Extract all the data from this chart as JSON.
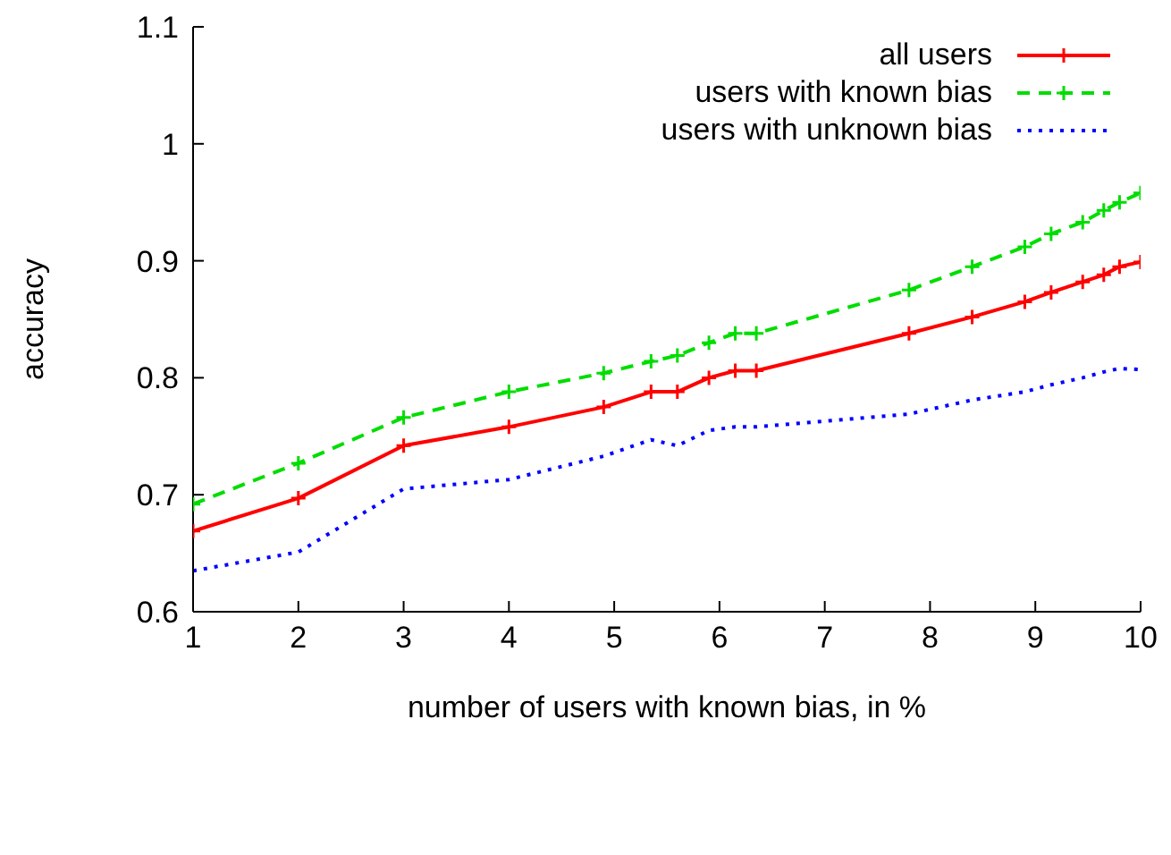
{
  "chart_data": {
    "type": "line",
    "xlabel": "number of users with known bias, in %",
    "ylabel": "accuracy",
    "x": [
      1,
      2,
      3,
      4,
      4.9,
      5.35,
      5.6,
      5.9,
      6.15,
      6.35,
      7.8,
      8.4,
      8.9,
      9.15,
      9.45,
      9.65,
      9.8,
      10
    ],
    "series": [
      {
        "name": "all users",
        "color": "#ff0000",
        "line_style": "solid",
        "marker": "cross",
        "values": [
          0.669,
          0.697,
          0.742,
          0.758,
          0.775,
          0.788,
          0.788,
          0.8,
          0.806,
          0.806,
          0.838,
          0.852,
          0.865,
          0.873,
          0.882,
          0.888,
          0.895,
          0.899
        ]
      },
      {
        "name": "users with known bias",
        "color": "#00dd00",
        "line_style": "dashed",
        "marker": "cross",
        "values": [
          0.692,
          0.727,
          0.766,
          0.788,
          0.804,
          0.814,
          0.819,
          0.83,
          0.838,
          0.838,
          0.875,
          0.895,
          0.912,
          0.923,
          0.933,
          0.943,
          0.95,
          0.958
        ]
      },
      {
        "name": "users with unknown bias",
        "color": "#0000ff",
        "line_style": "dotted",
        "marker": "none",
        "values": [
          0.635,
          0.651,
          0.705,
          0.713,
          0.733,
          0.747,
          0.742,
          0.755,
          0.758,
          0.758,
          0.769,
          0.781,
          0.788,
          0.794,
          0.8,
          0.805,
          0.808,
          0.807
        ]
      }
    ],
    "xlim": [
      1,
      10
    ],
    "xticks": [
      1,
      2,
      3,
      4,
      5,
      6,
      7,
      8,
      9,
      10
    ],
    "ylim": [
      0.6,
      1.1
    ],
    "yticks": [
      0.6,
      0.7,
      0.8,
      0.9,
      1,
      1.1
    ],
    "grid": false,
    "legend": "top right"
  }
}
